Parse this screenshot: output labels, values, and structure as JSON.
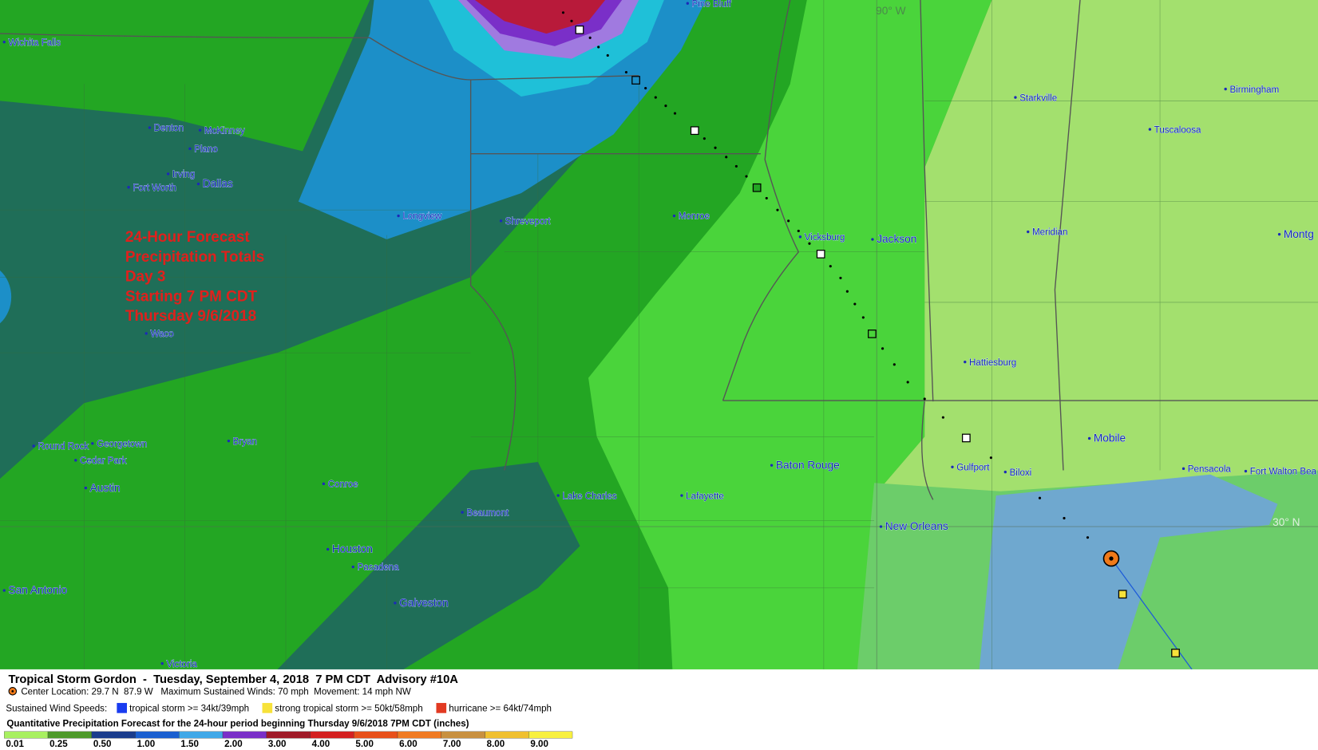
{
  "map": {
    "overlay_title": [
      "24-Hour Forecast",
      "Precipitation Totals",
      "Day 3",
      "Starting 7 PM CDT",
      "Thursday 9/6/2018"
    ],
    "grid_labels": [
      "90° W",
      "30° N"
    ],
    "cities": [
      "Wichita Falls",
      "Denton",
      "McKinney",
      "Plano",
      "Irving",
      "Fort Worth",
      "Dallas",
      "Longview",
      "Shreveport",
      "Monroe",
      "Vicksburg",
      "Jackson",
      "Starkville",
      "Birmingham",
      "Tuscaloosa",
      "Meridian",
      "Montg",
      "Waco",
      "Round Rock",
      "Georgetown",
      "Cedar Park",
      "Bryan",
      "Austin",
      "Conroe",
      "Beaumont",
      "Lake Charles",
      "Lafayette",
      "Baton Rouge",
      "Hattiesburg",
      "Mobile",
      "Gulfport",
      "Biloxi",
      "Pensacola",
      "Fort Walton Bea",
      "New Orleans",
      "Houston",
      "Pasadena",
      "Galveston",
      "San Antonio",
      "Victoria",
      "Pine Bluff"
    ]
  },
  "footer": {
    "title": "Tropical Storm Gordon  -  Tuesday, September 4, 2018  7 PM CDT  Advisory #10A",
    "center": "Center Location: 29.7 N  87.9 W   Maximum Sustained Winds: 70 mph  Movement: 14 mph NW",
    "wind_label": "Sustained Wind Speeds:",
    "wind_items": [
      "tropical storm >= 34kt/39mph",
      "strong tropical storm >= 50kt/58mph",
      "hurricane >= 64kt/74mph"
    ],
    "qpf_title": "Quantitative Precipitation Forecast for the 24-hour period beginning Thursday 9/6/2018 7PM CDT (inches)",
    "scale": [
      "0.01",
      "0.25",
      "0.50",
      "1.00",
      "1.50",
      "2.00",
      "3.00",
      "4.00",
      "5.00",
      "6.00",
      "7.00",
      "8.00",
      "9.00"
    ]
  }
}
